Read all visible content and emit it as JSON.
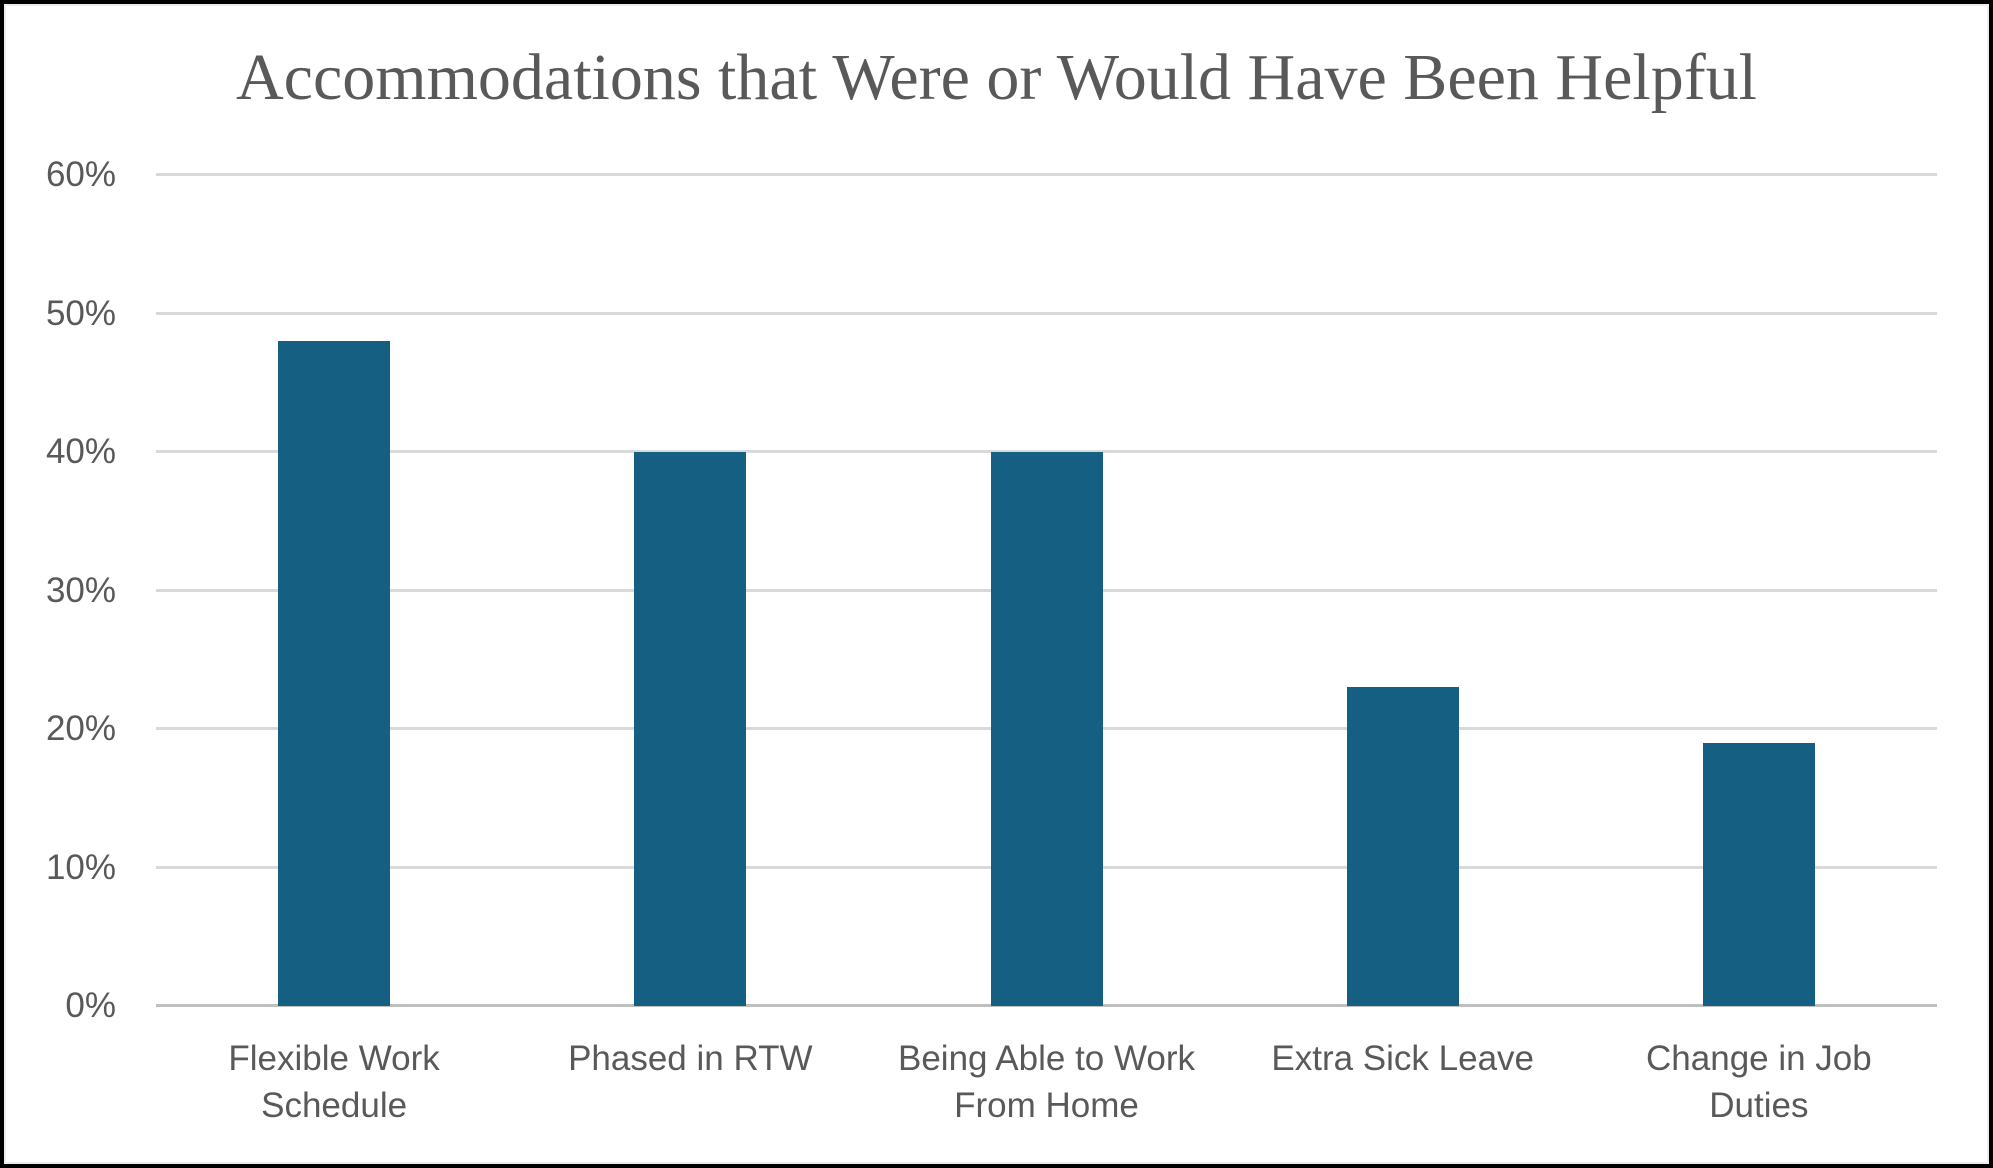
{
  "chart_data": {
    "type": "bar",
    "title": "Accommodations that Were or Would Have Been Helpful",
    "categories": [
      "Flexible Work Schedule",
      "Phased in RTW",
      "Being Able to Work From Home",
      "Extra Sick Leave",
      "Change in Job Duties"
    ],
    "values": [
      48,
      40,
      40,
      23,
      19
    ],
    "unit": "%",
    "xlabel": "",
    "ylabel": "",
    "ylim": [
      0,
      60
    ],
    "ytick_interval": 10,
    "ytick_labels": [
      "0%",
      "10%",
      "20%",
      "30%",
      "40%",
      "50%",
      "60%"
    ],
    "grid": true,
    "legend": "none",
    "bar_color": "#156082",
    "text_color": "#595959",
    "gridline_color": "#d9d9d9",
    "axis_line_color": "#bfbfbf",
    "background_color": "#ffffff",
    "border_color": "#000000"
  }
}
